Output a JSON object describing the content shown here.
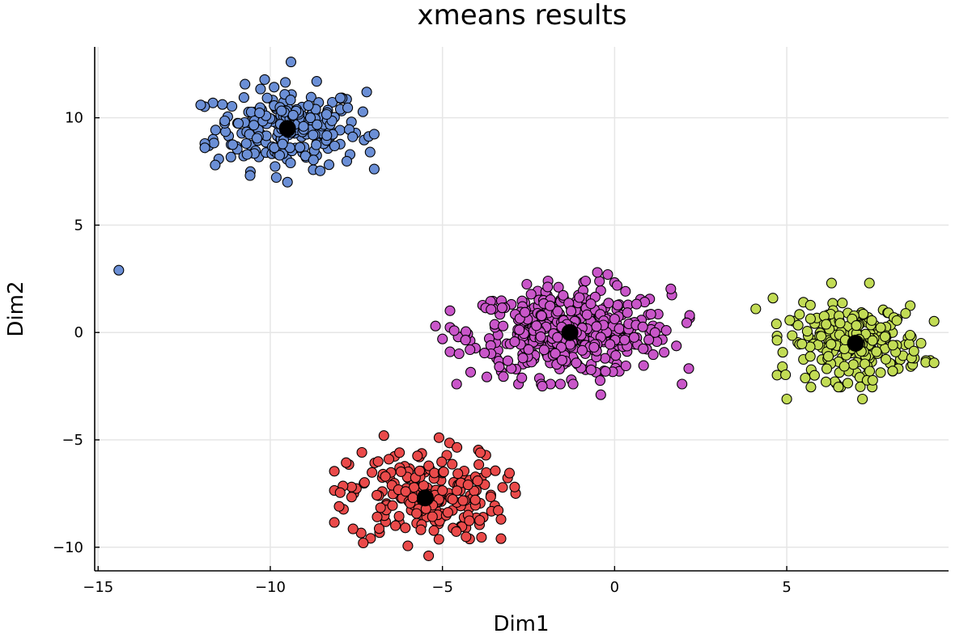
{
  "chart_data": {
    "type": "scatter",
    "title": "xmeans results",
    "xlabel": "Dim1",
    "ylabel": "Dim2",
    "xlim": [
      -15.1,
      9.7
    ],
    "ylim": [
      -11.1,
      13.3
    ],
    "xticks": [
      -15,
      -10,
      -5,
      0,
      5
    ],
    "yticks": [
      -10,
      -5,
      0,
      5,
      10
    ],
    "xtick_labels": [
      "−15",
      "−10",
      "−5",
      "0",
      "5"
    ],
    "ytick_labels": [
      "−10",
      "−5",
      "0",
      "5",
      "10"
    ],
    "grid": true,
    "legend": "none",
    "clusters": [
      {
        "color": "#6b8fd6",
        "center": [
          -9.5,
          9.5
        ],
        "spread": [
          1.05,
          0.95
        ],
        "count": 230,
        "outliers": [
          [
            -14.4,
            2.9
          ],
          [
            -9.4,
            12.6
          ],
          [
            -9.5,
            7.0
          ],
          [
            -11.9,
            8.8
          ],
          [
            -11.9,
            8.6
          ],
          [
            -7.1,
            8.4
          ],
          [
            -7.2,
            11.2
          ],
          [
            -11.6,
            7.8
          ]
        ]
      },
      {
        "color": "#c956c9",
        "center": [
          -1.3,
          0.0
        ],
        "spread": [
          1.45,
          1.0
        ],
        "count": 430,
        "outliers": [
          [
            -5.2,
            0.3
          ],
          [
            -5.0,
            -0.3
          ],
          [
            -4.2,
            -0.8
          ],
          [
            -0.4,
            -2.9
          ],
          [
            -2.1,
            -2.5
          ],
          [
            1.5,
            0.1
          ],
          [
            -0.5,
            2.8
          ],
          [
            -0.2,
            2.7
          ]
        ]
      },
      {
        "color": "#ea4a4a",
        "center": [
          -5.5,
          -7.6
        ],
        "spread": [
          1.1,
          1.05
        ],
        "count": 220,
        "outliers": [
          [
            -5.4,
            -10.4
          ],
          [
            -3.3,
            -9.6
          ],
          [
            -7.3,
            -9.8
          ],
          [
            -8.0,
            -8.1
          ],
          [
            -6.7,
            -4.8
          ],
          [
            -5.1,
            -4.9
          ],
          [
            -3.9,
            -5.6
          ],
          [
            -3.3,
            -8.7
          ]
        ]
      },
      {
        "color": "#c2dc55",
        "center": [
          7.0,
          -0.5
        ],
        "spread": [
          0.95,
          0.85
        ],
        "count": 230,
        "outliers": [
          [
            4.1,
            1.1
          ],
          [
            4.6,
            1.6
          ],
          [
            5.0,
            -3.1
          ],
          [
            7.2,
            -3.1
          ],
          [
            6.3,
            2.3
          ],
          [
            7.4,
            2.3
          ],
          [
            8.9,
            -0.5
          ],
          [
            4.7,
            0.4
          ]
        ]
      }
    ],
    "centroids": [
      [
        -9.5,
        9.5
      ],
      [
        -1.3,
        0.0
      ],
      [
        -5.5,
        -7.7
      ],
      [
        7.0,
        -0.5
      ]
    ],
    "centroid_color": "#000000"
  }
}
